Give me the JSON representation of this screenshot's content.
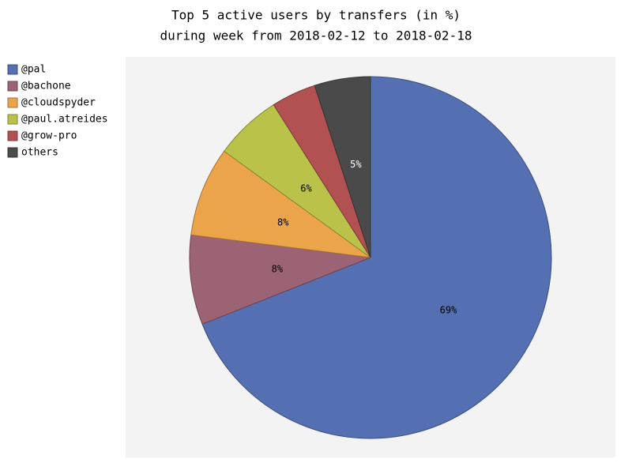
{
  "chart_data": {
    "type": "pie",
    "title": "Top 5 active users by transfers (in %)",
    "subtitle": "during week from 2018-02-12 to 2018-02-18",
    "categories": [
      "@pal",
      "@bachone",
      "@cloudspyder",
      "@paul.atreides",
      "@grow-pro",
      "others"
    ],
    "values": [
      69,
      8,
      8,
      6,
      4,
      5
    ],
    "value_labels": [
      "69%",
      "8%",
      "8%",
      "6%",
      null,
      "5%"
    ],
    "colors": [
      "#5470b3",
      "#9b6373",
      "#eca44b",
      "#bac24a",
      "#b25152",
      "#4a4a4a"
    ],
    "legend": "top-left"
  }
}
